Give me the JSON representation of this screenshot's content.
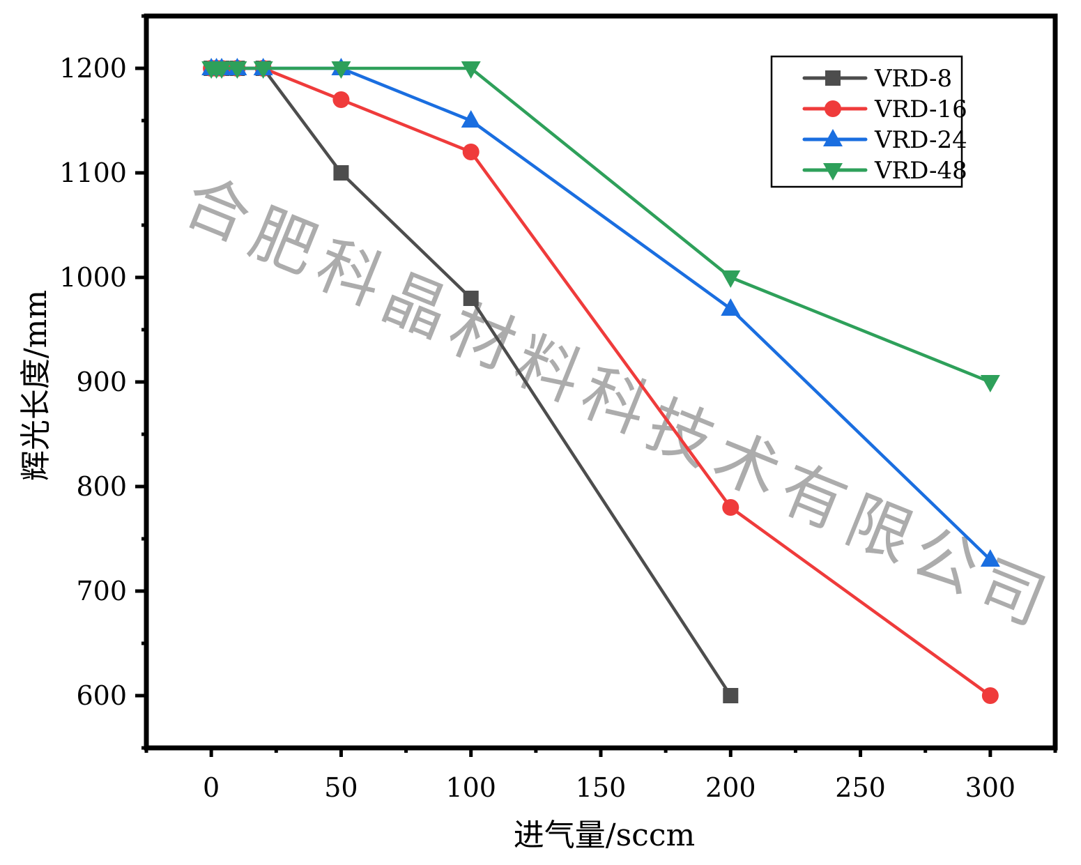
{
  "chart_data": {
    "type": "line",
    "title": "",
    "xlabel": "进气量/sccm",
    "ylabel": "辉光长度/mm",
    "xlim": [
      -25,
      325
    ],
    "ylim": [
      550,
      1250
    ],
    "xticks": [
      0,
      50,
      100,
      150,
      200,
      250,
      300
    ],
    "xtick_labels": [
      "0",
      "50",
      "100",
      "150",
      "200",
      "250",
      "300"
    ],
    "yticks": [
      600,
      700,
      800,
      900,
      1000,
      1100,
      1200
    ],
    "ytick_labels": [
      "600",
      "700",
      "800",
      "900",
      "1000",
      "1100",
      "1200"
    ],
    "grid": false,
    "legend_position": "top-right",
    "series": [
      {
        "name": "VRD-8",
        "color": "#4d4d4d",
        "marker": "square",
        "x": [
          0,
          2,
          4,
          10,
          20,
          50,
          100,
          200
        ],
        "y": [
          1200,
          1200,
          1200,
          1200,
          1200,
          1100,
          980,
          600
        ]
      },
      {
        "name": "VRD-16",
        "color": "#ef3b3b",
        "marker": "circle",
        "x": [
          0,
          2,
          4,
          10,
          20,
          50,
          100,
          200,
          300
        ],
        "y": [
          1200,
          1200,
          1200,
          1200,
          1200,
          1170,
          1120,
          780,
          600
        ]
      },
      {
        "name": "VRD-24",
        "color": "#1a6ee0",
        "marker": "triangle-up",
        "x": [
          0,
          2,
          4,
          10,
          20,
          50,
          100,
          200,
          300
        ],
        "y": [
          1200,
          1200,
          1200,
          1200,
          1200,
          1200,
          1150,
          970,
          730
        ]
      },
      {
        "name": "VRD-48",
        "color": "#2ea05a",
        "marker": "triangle-down",
        "x": [
          0,
          2,
          4,
          10,
          20,
          50,
          100,
          200,
          300
        ],
        "y": [
          1200,
          1200,
          1200,
          1200,
          1200,
          1200,
          1200,
          1000,
          900
        ]
      }
    ],
    "watermark": [
      "合",
      "肥",
      "科",
      "晶",
      "材",
      "料",
      "科",
      "技",
      "术",
      "有",
      "限",
      "公",
      "司"
    ]
  }
}
